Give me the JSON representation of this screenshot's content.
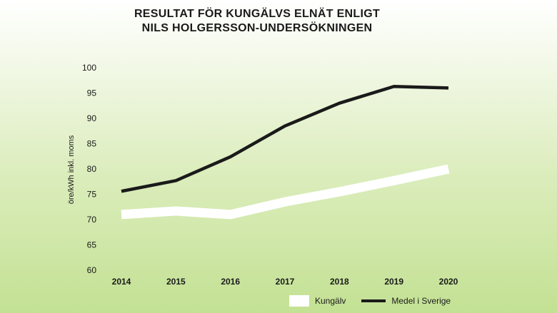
{
  "chart_data": {
    "type": "line",
    "title_line1": "RESULTAT FÖR KUNGÄLVS ELNÄT ENLIGT",
    "title_line2": "NILS HOLGERSSON-UNDERSÖKNINGEN",
    "ylabel": "öre/kWh inkl. moms",
    "xlabel": "",
    "x": [
      "2014",
      "2015",
      "2016",
      "2017",
      "2018",
      "2019",
      "2020"
    ],
    "ylim": [
      60,
      100
    ],
    "yticks": [
      60,
      65,
      70,
      75,
      80,
      85,
      90,
      95,
      100
    ],
    "grid": false,
    "legend_position": "bottom-right",
    "series": [
      {
        "name": "Kungälv",
        "color": "#ffffff",
        "values": [
          71,
          71.7,
          71,
          73.5,
          75.5,
          77.7,
          80
        ]
      },
      {
        "name": "Medel i Sverige",
        "color": "#1a1a1a",
        "values": [
          75.6,
          77.7,
          82.4,
          88.5,
          93,
          96.3,
          96
        ]
      }
    ]
  }
}
